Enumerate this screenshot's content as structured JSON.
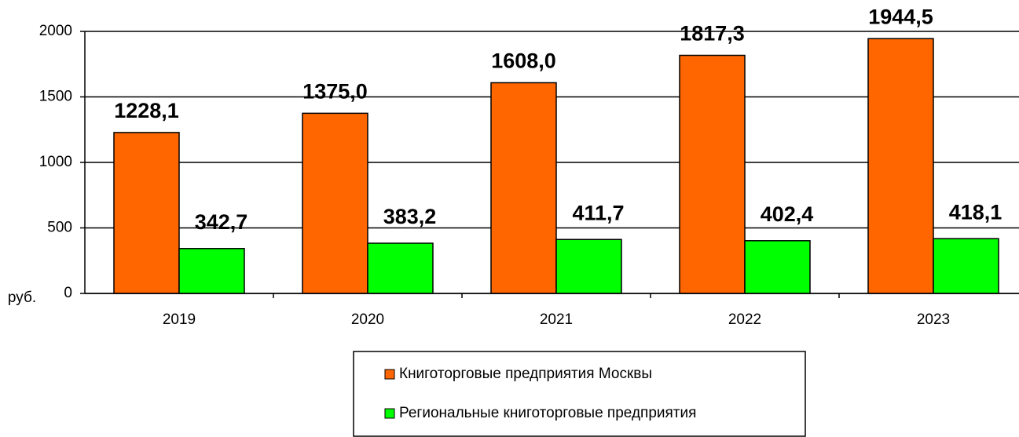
{
  "chart_data": {
    "type": "bar",
    "ylabel": "руб.",
    "categories": [
      "2019",
      "2020",
      "2021",
      "2022",
      "2023"
    ],
    "series": [
      {
        "name": "Книготорговые предприятия Москвы",
        "color": "#ff6600",
        "values": [
          1228.1,
          1375.0,
          1608.0,
          1817.3,
          1944.5
        ],
        "value_labels": [
          "1228,1",
          "1375,0",
          "1608,0",
          "1817,3",
          "1944,5"
        ]
      },
      {
        "name": "Региональные книготорговые предприятия",
        "color": "#00ff00",
        "values": [
          342.7,
          383.2,
          411.7,
          402.4,
          418.1
        ],
        "value_labels": [
          "342,7",
          "383,2",
          "411,7",
          "402,4",
          "418,1"
        ]
      }
    ],
    "ylim": [
      0,
      2000
    ],
    "yticks": [
      0,
      500,
      1000,
      1500,
      2000
    ],
    "grid": true
  }
}
